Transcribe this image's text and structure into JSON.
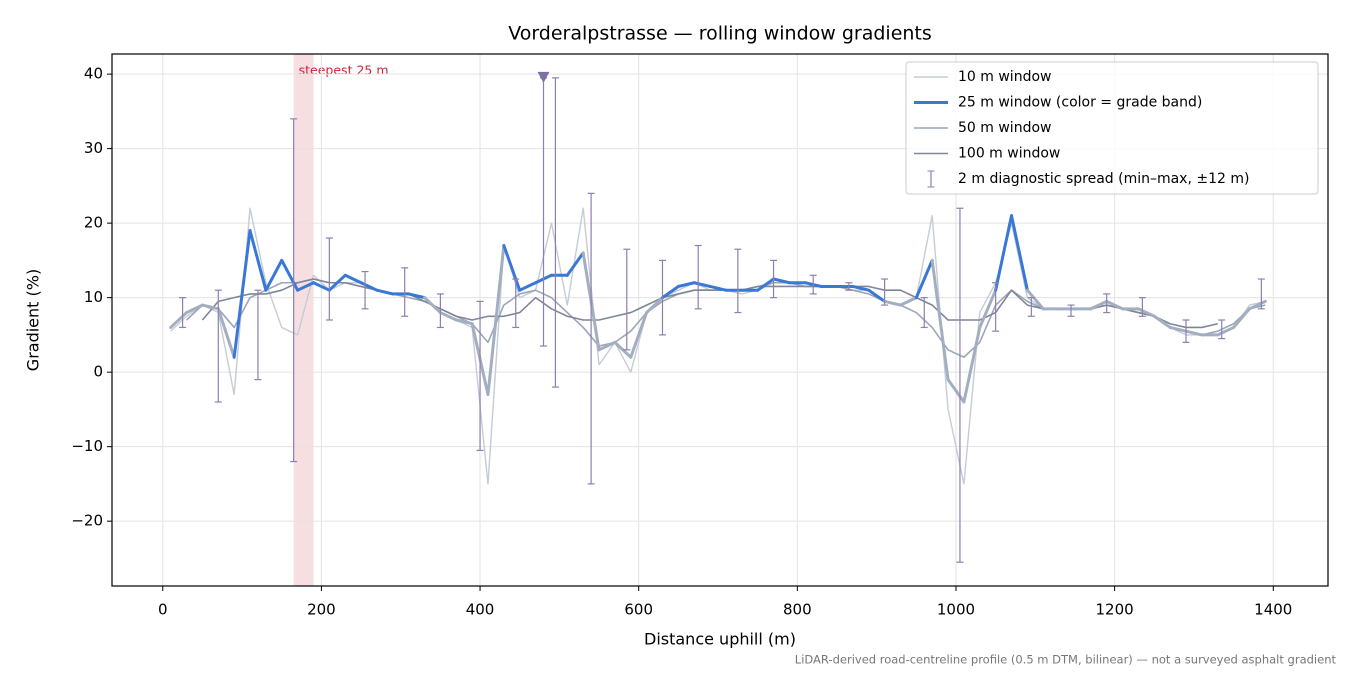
{
  "chart_data": {
    "type": "line",
    "title": "Vorderalpstrasse — rolling window gradients",
    "xlabel": "Distance uphill (m)",
    "ylabel": "Gradient (%)",
    "footnote": "LiDAR-derived road-centreline profile (0.5 m DTM, bilinear) — not a surveyed asphalt gradient",
    "x": [
      10,
      30,
      50,
      70,
      90,
      110,
      130,
      150,
      170,
      190,
      210,
      230,
      250,
      270,
      290,
      310,
      330,
      350,
      370,
      390,
      410,
      430,
      450,
      470,
      490,
      510,
      530,
      550,
      570,
      590,
      610,
      630,
      650,
      670,
      690,
      710,
      730,
      750,
      770,
      790,
      810,
      830,
      850,
      870,
      890,
      910,
      930,
      950,
      970,
      990,
      1010,
      1030,
      1050,
      1070,
      1090,
      1110,
      1130,
      1150,
      1170,
      1190,
      1210,
      1230,
      1250,
      1270,
      1290,
      1310,
      1330,
      1350,
      1370,
      1390
    ],
    "series": [
      {
        "name": "10 m window",
        "color": "#c5ccd6",
        "values": [
          5.5,
          7.5,
          9,
          8,
          -3,
          22,
          12,
          6,
          5,
          13,
          11,
          12,
          12,
          11,
          10.5,
          10.5,
          10,
          8,
          7,
          6,
          -15,
          17,
          10,
          11,
          20,
          9,
          22,
          1,
          4,
          0,
          8,
          10,
          11,
          12,
          11,
          11,
          10.5,
          11,
          12,
          12,
          11.5,
          11.5,
          11.5,
          11,
          11,
          9.5,
          9,
          10,
          21,
          -5,
          -15,
          8,
          12,
          20,
          10,
          8.5,
          8.5,
          8.5,
          8.5,
          9.5,
          8.5,
          8,
          7.5,
          6,
          5,
          5,
          5,
          6,
          9,
          9.5
        ]
      },
      {
        "name": "25 m window (color = grade band)",
        "color": "#a3afc0",
        "grade_bands": [
          {
            "min": 10,
            "color": "#3a78d8"
          },
          {
            "min": 20,
            "color": "#e8890c"
          }
        ],
        "values": [
          6,
          8,
          9,
          8.5,
          2,
          19,
          11,
          15,
          11,
          12,
          11,
          13,
          12,
          11,
          10.5,
          10.5,
          10,
          8,
          7,
          6.5,
          -3,
          17,
          11,
          12,
          13,
          13,
          16,
          3,
          4,
          2,
          8,
          10,
          11.5,
          12,
          11.5,
          11,
          11,
          11,
          12.5,
          12,
          12,
          11.5,
          11.5,
          11.5,
          11,
          9.5,
          9,
          10,
          15,
          -1,
          -4,
          6,
          11,
          21,
          11,
          8.5,
          8.5,
          8.5,
          8.5,
          9.5,
          8.5,
          8.5,
          7.5,
          6,
          5.5,
          5,
          5,
          6,
          8.5,
          9.5
        ]
      },
      {
        "name": "50 m window",
        "color": "#9aa7b8",
        "values": [
          null,
          7,
          9,
          8.5,
          6,
          10,
          11,
          12,
          12,
          12.5,
          12,
          12,
          11.5,
          11,
          10.5,
          10,
          9.5,
          8.5,
          7.5,
          6.5,
          4,
          9,
          10.5,
          11,
          10,
          8,
          6,
          3.5,
          4,
          5.5,
          8,
          9.5,
          10.5,
          11,
          11,
          11,
          11,
          11.5,
          12,
          12,
          11.5,
          11.5,
          11.5,
          11,
          10.5,
          9.5,
          9,
          8,
          6,
          3,
          2,
          4,
          9,
          11,
          9.5,
          8.5,
          8.5,
          8.5,
          8.5,
          9,
          8.5,
          8,
          7.5,
          6,
          5.5,
          5,
          5.5,
          6.5,
          8.5,
          9
        ]
      },
      {
        "name": "100 m window",
        "color": "#7d8798",
        "values": [
          null,
          null,
          7,
          9.5,
          10,
          10.5,
          10.5,
          11,
          12,
          12.5,
          12,
          12,
          11.5,
          11,
          10.5,
          10.5,
          9.5,
          8.5,
          7.5,
          7,
          7.5,
          7.5,
          8,
          10,
          8.5,
          7.5,
          7,
          7,
          7.5,
          8,
          9,
          10,
          10.5,
          11,
          11,
          11,
          11,
          11.5,
          11.5,
          11.5,
          11.5,
          11.5,
          11.5,
          11.5,
          11.5,
          11,
          11,
          10,
          9,
          7,
          7,
          7,
          8,
          11,
          9,
          8.5,
          8.5,
          8.5,
          8.5,
          9,
          8.5,
          8,
          7.5,
          6.5,
          6,
          6,
          6.5,
          null,
          null,
          null
        ]
      }
    ],
    "errorbars": {
      "name": "2 m diagnostic spread (min–max, ±12 m)",
      "color": "#8e7fb0",
      "x": [
        25,
        70,
        120,
        165,
        210,
        255,
        305,
        350,
        400,
        445,
        480,
        495,
        540,
        585,
        630,
        675,
        725,
        770,
        820,
        865,
        910,
        960,
        1005,
        1050,
        1095,
        1145,
        1190,
        1235,
        1290,
        1335,
        1385
      ],
      "low": [
        6,
        -4,
        -1,
        -12,
        7,
        8.5,
        7.5,
        6,
        -10.5,
        6,
        3.5,
        -2,
        -15,
        3,
        5,
        8.5,
        8,
        10,
        10.5,
        11,
        9,
        6,
        -25.5,
        5.5,
        7.5,
        7.5,
        8,
        7.5,
        4,
        4.5,
        8.5
      ],
      "high": [
        10,
        11,
        11,
        34,
        18,
        13.5,
        14,
        10.5,
        9.5,
        12.5,
        39.5,
        39.5,
        24,
        16.5,
        15,
        17,
        16.5,
        15,
        13,
        12,
        12.5,
        10,
        22,
        12,
        10,
        9,
        10.5,
        10,
        7,
        7,
        12.5
      ]
    },
    "span": {
      "x": [
        165,
        190
      ],
      "label": "steepest 25 m",
      "color": "#e8a0a8"
    },
    "marker": {
      "x": 480,
      "y": 39.5,
      "color": "#7f6fa3"
    },
    "xlim": [
      -64,
      1469
    ],
    "ylim": [
      -28.7,
      42.7
    ],
    "xticks": [
      0,
      200,
      400,
      600,
      800,
      1000,
      1200,
      1400
    ],
    "yticks": [
      {
        "value": -20,
        "label": "−20"
      },
      {
        "value": -10,
        "label": "−10"
      },
      0,
      10,
      20,
      30,
      40
    ],
    "grid": true,
    "legend": "upper right"
  }
}
